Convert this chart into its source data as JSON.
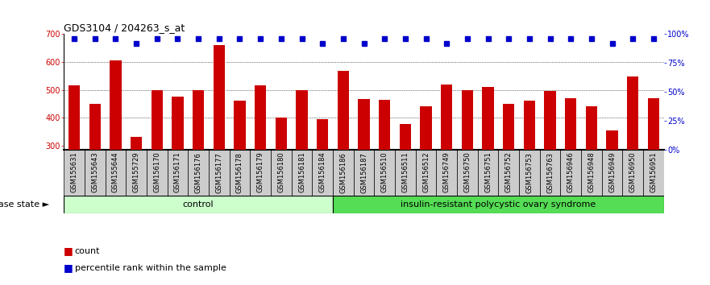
{
  "title": "GDS3104 / 204263_s_at",
  "categories": [
    "GSM155631",
    "GSM155643",
    "GSM155644",
    "GSM155729",
    "GSM156170",
    "GSM156171",
    "GSM156176",
    "GSM156177",
    "GSM156178",
    "GSM156179",
    "GSM156180",
    "GSM156181",
    "GSM156184",
    "GSM156186",
    "GSM156187",
    "GSM156510",
    "GSM156511",
    "GSM156512",
    "GSM156749",
    "GSM156750",
    "GSM156751",
    "GSM156752",
    "GSM156753",
    "GSM156763",
    "GSM156946",
    "GSM156948",
    "GSM156949",
    "GSM156950",
    "GSM156951"
  ],
  "bar_values": [
    515,
    450,
    605,
    330,
    500,
    475,
    500,
    660,
    460,
    515,
    400,
    500,
    395,
    568,
    468,
    465,
    378,
    440,
    520,
    500,
    510,
    450,
    462,
    495,
    470,
    440,
    355,
    548,
    470
  ],
  "percentile_flags": [
    1,
    1,
    1,
    0,
    1,
    1,
    1,
    1,
    1,
    1,
    1,
    1,
    0,
    1,
    0,
    1,
    1,
    1,
    0,
    1,
    1,
    1,
    1,
    1,
    1,
    1,
    0,
    1,
    1
  ],
  "n_control": 13,
  "ymin": 285,
  "ymax": 700,
  "yticks_left": [
    300,
    400,
    500,
    600,
    700
  ],
  "yticks_right": [
    0,
    25,
    50,
    75,
    100
  ],
  "bar_color": "#CC0000",
  "percentile_color": "#0000CC",
  "control_fill": "#ccffcc",
  "disease_fill": "#55dd55",
  "xticklabel_bg": "#cccccc",
  "control_label": "control",
  "disease_label": "insulin-resistant polycystic ovary syndrome",
  "disease_state_label": "disease state",
  "legend_count": "count",
  "legend_pct": "percentile rank within the sample",
  "title_fontsize": 9,
  "bar_label_fontsize": 6,
  "axis_fontsize": 7,
  "group_fontsize": 8,
  "legend_fontsize": 8
}
